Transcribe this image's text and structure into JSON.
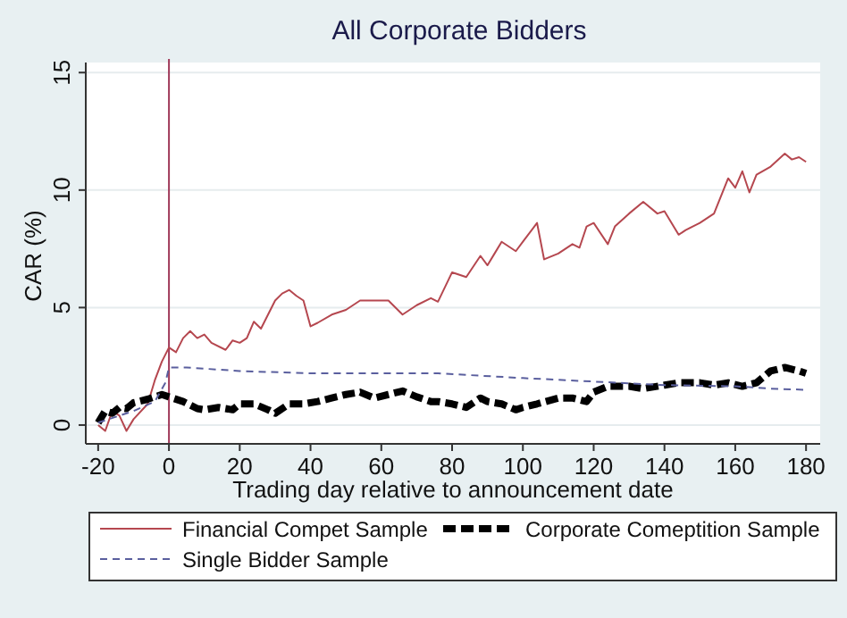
{
  "chart_data": {
    "type": "line",
    "title": "All Corporate Bidders",
    "xlabel": "Trading day relative to announcement date",
    "ylabel": "CAR (%)",
    "xlim": [
      -23.5,
      184
    ],
    "xticks": [
      -20,
      0,
      20,
      40,
      60,
      80,
      100,
      120,
      140,
      160,
      180
    ],
    "ylim": [
      -0.8,
      15.2
    ],
    "yticks": [
      0,
      5,
      10,
      15
    ],
    "grid": "y",
    "legend": "bottom",
    "ref_lines": [
      {
        "axis": "x",
        "value": 0,
        "color": "#a03a5a"
      }
    ],
    "series": [
      {
        "name": "Financial Compet Sample",
        "color": "#b5474f",
        "line_style": "solid",
        "x": [
          -20,
          -18,
          -16,
          -14,
          -12,
          -10,
          -6,
          -4,
          -2,
          0,
          2,
          4,
          6,
          8,
          10,
          12,
          16,
          18,
          20,
          22,
          24,
          26,
          28,
          30,
          32,
          34,
          36,
          38,
          40,
          42,
          46,
          50,
          54,
          58,
          62,
          66,
          70,
          74,
          76,
          80,
          84,
          88,
          90,
          92,
          94,
          98,
          100,
          104,
          106,
          110,
          114,
          116,
          118,
          120,
          124,
          126,
          130,
          134,
          138,
          140,
          144,
          146,
          150,
          154,
          156,
          158,
          160,
          162,
          164,
          166,
          170,
          174,
          176,
          178,
          180
        ],
        "values": [
          0,
          -0.25,
          0.6,
          0.4,
          -0.25,
          0.25,
          0.9,
          1.9,
          2.7,
          3.3,
          3.1,
          3.7,
          4.0,
          3.7,
          3.85,
          3.5,
          3.2,
          3.6,
          3.5,
          3.7,
          4.4,
          4.1,
          4.7,
          5.3,
          5.6,
          5.75,
          5.5,
          5.3,
          4.2,
          4.35,
          4.7,
          4.9,
          5.3,
          5.3,
          5.3,
          4.7,
          5.1,
          5.4,
          5.25,
          6.5,
          6.3,
          7.2,
          6.8,
          7.3,
          7.8,
          7.4,
          7.8,
          8.6,
          7.05,
          7.3,
          7.7,
          7.55,
          8.45,
          8.6,
          7.7,
          8.45,
          9.0,
          9.5,
          9.0,
          9.1,
          8.1,
          8.3,
          8.6,
          9.0,
          9.75,
          10.5,
          10.1,
          10.8,
          9.9,
          10.65,
          11.0,
          11.55,
          11.3,
          11.4,
          11.2
        ]
      },
      {
        "name": "Corporate Comeptition Sample",
        "color": "#000000",
        "line_style": "dashed",
        "x": [
          -20,
          -18,
          -16,
          -14,
          -12,
          -10,
          -6,
          -2,
          0,
          4,
          8,
          10,
          14,
          18,
          20,
          24,
          28,
          30,
          34,
          38,
          42,
          46,
          50,
          54,
          58,
          62,
          66,
          70,
          74,
          76,
          80,
          84,
          88,
          90,
          94,
          98,
          100,
          104,
          110,
          114,
          118,
          120,
          124,
          130,
          134,
          140,
          144,
          150,
          154,
          158,
          162,
          166,
          170,
          174,
          178,
          180
        ],
        "values": [
          0.1,
          0.6,
          0.5,
          0.75,
          0.7,
          0.95,
          1.1,
          1.3,
          1.2,
          1.0,
          0.7,
          0.65,
          0.75,
          0.65,
          0.9,
          0.9,
          0.65,
          0.5,
          0.9,
          0.9,
          1.0,
          1.15,
          1.3,
          1.4,
          1.15,
          1.3,
          1.45,
          1.2,
          1.0,
          1.0,
          0.9,
          0.75,
          1.15,
          1.0,
          0.9,
          0.65,
          0.75,
          0.9,
          1.15,
          1.15,
          1.0,
          1.4,
          1.65,
          1.65,
          1.55,
          1.7,
          1.8,
          1.8,
          1.7,
          1.8,
          1.65,
          1.8,
          2.3,
          2.45,
          2.3,
          2.2
        ]
      },
      {
        "name": "Single Bidder Sample",
        "color": "#5a5f9e",
        "line_style": "dashed",
        "x": [
          -20,
          -10,
          -4,
          -1,
          0,
          5,
          20,
          40,
          60,
          76,
          100,
          120,
          140,
          160,
          170,
          180
        ],
        "values": [
          0.1,
          0.6,
          1.0,
          1.8,
          2.45,
          2.45,
          2.3,
          2.2,
          2.2,
          2.2,
          2.0,
          1.85,
          1.7,
          1.65,
          1.55,
          1.5
        ]
      }
    ]
  }
}
